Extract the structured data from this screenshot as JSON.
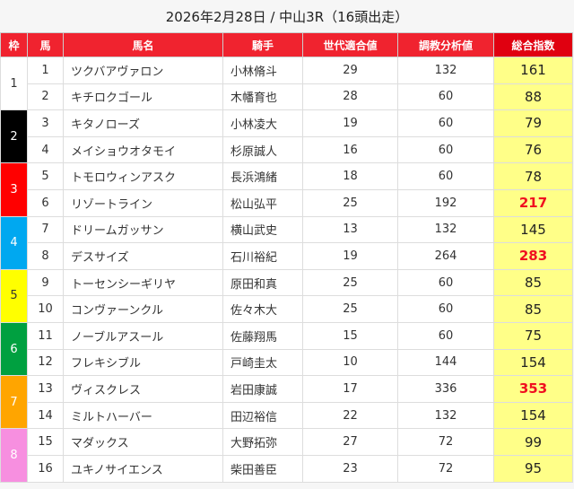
{
  "title": "2026年2月28日 / 中山3R（16頭出走）",
  "headers": [
    "枠",
    "馬",
    "馬名",
    "騎手",
    "世代適合値",
    "調教分析値",
    "総合指数"
  ],
  "waku": [
    {
      "label": "1",
      "bg": "#ffffff",
      "fg": "#333333"
    },
    {
      "label": "2",
      "bg": "#000000",
      "fg": "#ffffff"
    },
    {
      "label": "3",
      "bg": "#ff0000",
      "fg": "#ffffff"
    },
    {
      "label": "4",
      "bg": "#00a8f0",
      "fg": "#ffffff"
    },
    {
      "label": "5",
      "bg": "#ffff00",
      "fg": "#333333"
    },
    {
      "label": "6",
      "bg": "#00a040",
      "fg": "#ffffff"
    },
    {
      "label": "7",
      "bg": "#ffa500",
      "fg": "#ffffff"
    },
    {
      "label": "8",
      "bg": "#f78fe0",
      "fg": "#ffffff"
    }
  ],
  "rows": [
    {
      "num": "1",
      "name": "ツクバアヴァロン",
      "jockey": "小林脩斗",
      "gen": "29",
      "train": "132",
      "total": "161",
      "hi": false
    },
    {
      "num": "2",
      "name": "キチロクゴール",
      "jockey": "木幡育也",
      "gen": "28",
      "train": "60",
      "total": "88",
      "hi": false
    },
    {
      "num": "3",
      "name": "キタノローズ",
      "jockey": "小林凌大",
      "gen": "19",
      "train": "60",
      "total": "79",
      "hi": false
    },
    {
      "num": "4",
      "name": "メイショウオタモイ",
      "jockey": "杉原誠人",
      "gen": "16",
      "train": "60",
      "total": "76",
      "hi": false
    },
    {
      "num": "5",
      "name": "トモロウィンアスク",
      "jockey": "長浜鴻緒",
      "gen": "18",
      "train": "60",
      "total": "78",
      "hi": false
    },
    {
      "num": "6",
      "name": "リゾートライン",
      "jockey": "松山弘平",
      "gen": "25",
      "train": "192",
      "total": "217",
      "hi": true
    },
    {
      "num": "7",
      "name": "ドリームガッサン",
      "jockey": "横山武史",
      "gen": "13",
      "train": "132",
      "total": "145",
      "hi": false
    },
    {
      "num": "8",
      "name": "デスサイズ",
      "jockey": "石川裕紀",
      "gen": "19",
      "train": "264",
      "total": "283",
      "hi": true
    },
    {
      "num": "9",
      "name": "トーセンシーギリヤ",
      "jockey": "原田和真",
      "gen": "25",
      "train": "60",
      "total": "85",
      "hi": false
    },
    {
      "num": "10",
      "name": "コンヴァーンクル",
      "jockey": "佐々木大",
      "gen": "25",
      "train": "60",
      "total": "85",
      "hi": false
    },
    {
      "num": "11",
      "name": "ノーブルアスール",
      "jockey": "佐藤翔馬",
      "gen": "15",
      "train": "60",
      "total": "75",
      "hi": false
    },
    {
      "num": "12",
      "name": "フレキシブル",
      "jockey": "戸崎圭太",
      "gen": "10",
      "train": "144",
      "total": "154",
      "hi": false
    },
    {
      "num": "13",
      "name": "ヴィスクレス",
      "jockey": "岩田康誠",
      "gen": "17",
      "train": "336",
      "total": "353",
      "hi": true
    },
    {
      "num": "14",
      "name": "ミルトハーバー",
      "jockey": "田辺裕信",
      "gen": "22",
      "train": "132",
      "total": "154",
      "hi": false
    },
    {
      "num": "15",
      "name": "マダックス",
      "jockey": "大野拓弥",
      "gen": "27",
      "train": "72",
      "total": "99",
      "hi": false
    },
    {
      "num": "16",
      "name": "ユキノサイエンス",
      "jockey": "柴田善臣",
      "gen": "23",
      "train": "72",
      "total": "95",
      "hi": false
    }
  ]
}
